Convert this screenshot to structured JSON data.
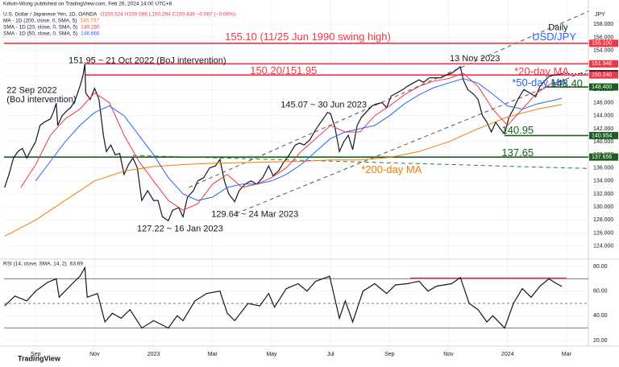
{
  "chart_data": [
    {
      "type": "line",
      "source": "Kelvin-Wong published on TradingView.com, Feb 26, 2024 14:00 UTC+8",
      "quote": "O150.524 H150.566 L150.294 C150.438 −0.087 (−0.06%)",
      "axis_unit": "JPY",
      "xlim": [
        6.93,
        26.74
      ],
      "ylim": [
        122,
        161
      ],
      "yticks": [
        {
          "value": 124,
          "label": "124.000"
        },
        {
          "value": 126,
          "label": "126.000"
        },
        {
          "value": 128,
          "label": "128.000"
        },
        {
          "value": 130,
          "label": "130.000"
        },
        {
          "value": 132,
          "label": "132.000"
        },
        {
          "value": 134,
          "label": "134.000"
        },
        {
          "value": 136,
          "label": "136.000"
        },
        {
          "value": 138,
          "label": "138.000"
        },
        {
          "value": 140,
          "label": "140.000"
        },
        {
          "value": 142,
          "label": "142.000"
        },
        {
          "value": 144,
          "label": "144.000"
        },
        {
          "value": 146,
          "label": "146.000"
        },
        {
          "value": 148,
          "label": "148.000"
        },
        {
          "value": 150,
          "label": "150.000"
        },
        {
          "value": 152,
          "label": "152.000"
        },
        {
          "value": 154,
          "label": "154.000"
        },
        {
          "value": 156,
          "label": "156.000"
        },
        {
          "value": 158,
          "label": "158.000"
        }
      ],
      "grid": true,
      "series": [
        {
          "name": "U.S. Dollar / Japanese Yen, 1D, OANDA",
          "color": "#131722",
          "x": [
            6.95,
            7.1,
            7.25,
            7.4,
            7.55,
            7.7,
            7.85,
            8.0,
            8.15,
            8.3,
            8.5,
            8.6,
            8.7,
            8.75,
            8.9,
            9.05,
            9.2,
            9.35,
            9.5,
            9.6,
            9.67,
            9.7,
            9.85,
            10.0,
            10.15,
            10.3,
            10.4,
            10.55,
            10.7,
            10.85,
            11.0,
            11.15,
            11.3,
            11.45,
            11.6,
            11.8,
            12.0,
            12.15,
            12.3,
            12.5,
            12.65,
            12.85,
            13.0,
            13.15,
            13.35,
            13.5,
            13.7,
            13.9,
            14.1,
            14.25,
            14.4,
            14.55,
            14.75,
            14.9,
            15.1,
            15.3,
            15.5,
            15.7,
            15.9,
            16.05,
            16.25,
            16.4,
            16.6,
            16.8,
            16.95,
            17.1,
            17.3,
            17.5,
            17.7,
            17.9,
            18.0,
            18.15,
            18.3,
            18.45,
            18.6,
            18.75,
            18.9,
            19.05,
            19.2,
            19.4,
            19.55,
            19.75,
            19.9,
            20.05,
            20.25,
            20.45,
            20.6,
            20.8,
            21.0,
            21.15,
            21.35,
            21.55,
            21.75,
            21.95,
            22.1,
            22.25,
            22.4,
            22.5,
            22.65,
            22.85,
            23.0,
            23.15,
            23.3,
            23.45,
            23.6,
            23.75,
            23.9,
            24.05,
            24.2,
            24.35,
            24.55,
            24.75,
            24.95,
            25.1,
            25.25,
            25.4,
            25.55,
            25.7,
            25.84
          ],
          "values": [
            133.0,
            135.0,
            137.5,
            138.5,
            139.0,
            137.5,
            138.8,
            140.0,
            142.5,
            143.0,
            143.5,
            144.5,
            145.9,
            142.5,
            144.0,
            144.7,
            145.3,
            146.5,
            148.5,
            150.0,
            151.9,
            147.5,
            146.5,
            148.2,
            146.5,
            141.0,
            138.5,
            139.5,
            138.0,
            138.2,
            135.0,
            136.5,
            137.5,
            136.0,
            131.0,
            132.5,
            131.0,
            131.0,
            128.5,
            127.9,
            129.5,
            129.9,
            128.5,
            131.5,
            132.5,
            134.0,
            134.5,
            136.0,
            136.3,
            137.3,
            134.0,
            132.0,
            130.8,
            132.5,
            133.5,
            134.0,
            133.5,
            134.5,
            136.3,
            134.8,
            135.6,
            136.8,
            138.0,
            139.5,
            139.8,
            139.5,
            140.3,
            141.9,
            143.2,
            144.5,
            144.3,
            142.2,
            138.5,
            140.0,
            141.0,
            138.8,
            142.5,
            143.8,
            144.5,
            145.5,
            145.8,
            146.0,
            145.2,
            147.0,
            147.5,
            148.0,
            148.5,
            149.0,
            149.5,
            149.1,
            149.8,
            149.8,
            149.8,
            150.3,
            150.5,
            151.0,
            151.5,
            149.5,
            148.0,
            147.3,
            146.5,
            144.0,
            143.0,
            141.5,
            143.0,
            142.0,
            141.2,
            143.8,
            145.0,
            146.5,
            148.0,
            147.5,
            146.9,
            148.5,
            149.3,
            150.0,
            150.2,
            150.3,
            150.44
          ]
        },
        {
          "name": "MA - 1D (200, close, 0, SMA, 5)",
          "legend_value": "145.707",
          "color": "#f57c00",
          "x": [
            6.95,
            8,
            9,
            10,
            11,
            12,
            13,
            14,
            15,
            16,
            17,
            18,
            19,
            20,
            21,
            22,
            23,
            24,
            25,
            25.84
          ],
          "values": [
            125.5,
            128,
            131,
            134,
            135.5,
            136.2,
            136.5,
            136.7,
            136.8,
            136.9,
            137,
            137.2,
            137.2,
            137.6,
            138.5,
            140,
            142,
            143.8,
            145,
            145.707
          ]
        },
        {
          "name": "SMA - 1D (20, close, 0, SMA, 5)",
          "legend_value": "149.280",
          "color": "#f23645",
          "x": [
            7.5,
            8,
            8.5,
            9,
            9.5,
            10,
            10.5,
            11,
            11.5,
            12,
            12.5,
            13,
            13.5,
            14,
            14.5,
            15,
            15.5,
            16,
            16.5,
            17,
            17.5,
            18,
            18.5,
            19,
            19.5,
            20,
            20.5,
            21,
            21.5,
            22,
            22.5,
            23,
            23.5,
            24,
            24.5,
            25,
            25.5,
            25.84
          ],
          "values": [
            133,
            136.5,
            141,
            143.5,
            145,
            147.5,
            146,
            141,
            137,
            134,
            131,
            129.5,
            130.5,
            133.5,
            135,
            133,
            133.5,
            134.5,
            136,
            138.5,
            140.5,
            142.5,
            141.5,
            141.5,
            144,
            145.5,
            147.2,
            148.5,
            149.3,
            149.7,
            150.5,
            148.5,
            145,
            142.5,
            145,
            147.5,
            149,
            149.28
          ]
        },
        {
          "name": "SMA - 1D (50, close, 0, SMA, 5)",
          "legend_value": "146.666",
          "color": "#2962ff",
          "x": [
            8,
            8.5,
            9,
            9.5,
            10,
            10.5,
            11,
            11.5,
            12,
            12.5,
            13,
            13.5,
            14,
            14.5,
            15,
            15.5,
            16,
            16.5,
            17,
            17.5,
            18,
            18.5,
            19,
            19.5,
            20,
            20.5,
            21,
            21.5,
            22,
            22.5,
            23,
            23.5,
            24,
            24.5,
            25,
            25.5,
            25.84
          ],
          "values": [
            134,
            137,
            140,
            142.5,
            144.5,
            145.5,
            144,
            141,
            138,
            134.5,
            132,
            131,
            131.5,
            133,
            133.5,
            133.5,
            134,
            135,
            136.5,
            138.5,
            140.5,
            141.5,
            142,
            142.5,
            144,
            145.8,
            147.2,
            148.3,
            149,
            149.7,
            149,
            147.3,
            145.5,
            145,
            145.8,
            146.3,
            146.666
          ]
        }
      ],
      "levels": [
        {
          "value": 155.1,
          "label": "155.100",
          "color": "#f23645",
          "from": 6.93
        },
        {
          "value": 151.946,
          "label": "151.946",
          "color": "#f23645",
          "from": 9.67
        },
        {
          "value": 150.438,
          "label": "150.438",
          "color": "#131722",
          "from": 25.84
        },
        {
          "value": 150.24,
          "label": "150.240",
          "color": "#f23645",
          "from": 9.67
        },
        {
          "value": 148.4,
          "label": "148.400",
          "color": "#1b5e20",
          "from": 25.3
        },
        {
          "value": 140.954,
          "label": "140.954",
          "color": "#1b5e20",
          "from": 23.9
        },
        {
          "value": 137.656,
          "label": "137.656",
          "color": "#1b5e20",
          "from": 6.93
        }
      ],
      "trendlines": [
        {
          "x": [
            13.2,
            26.74
          ],
          "y": [
            133.0,
            160.0
          ]
        },
        {
          "x": [
            14.8,
            26.74
          ],
          "y": [
            129.0,
            151.0
          ]
        },
        {
          "x": [
            11.3,
            26.74
          ],
          "y": [
            137.9,
            135.9
          ]
        }
      ],
      "annotations": [
        {
          "text": "155.10 (11/25 Jun 1990 swing high)",
          "x": 14.42,
          "y": 156.0,
          "color": "#f23645"
        },
        {
          "text": "151.95 ~ 21 Oct 2022 (BoJ intervention)",
          "x": 9.12,
          "y": 152.4,
          "color": "#131722"
        },
        {
          "text": "22 Sep 2022",
          "x": 7.02,
          "y": 147.87,
          "color": "#131722"
        },
        {
          "text": "(BoJ intervention)",
          "x": 7.02,
          "y": 146.4,
          "color": "#131722"
        },
        {
          "text": "150.20/151.95",
          "x": 15.27,
          "y": 150.8,
          "color": "#f23645"
        },
        {
          "text": "13 Nov 2023",
          "x": 22.04,
          "y": 152.7,
          "color": "#131722"
        },
        {
          "text": "*20-day MA",
          "x": 24.23,
          "y": 150.71,
          "color": "#f23645"
        },
        {
          "text": "*50-day MA",
          "x": 24.15,
          "y": 148.98,
          "color": "#2962ff"
        },
        {
          "text": "148.40",
          "x": 25.46,
          "y": 148.86,
          "color": "#1b5e20"
        },
        {
          "text": "145.07 ~ 30 Jun 2023",
          "x": 16.31,
          "y": 145.65,
          "color": "#131722"
        },
        {
          "text": "140.95",
          "x": 23.8,
          "y": 141.7,
          "color": "#1b5e20"
        },
        {
          "text": "137.65",
          "x": 23.8,
          "y": 138.24,
          "color": "#1b5e20"
        },
        {
          "text": "*200-day MA",
          "x": 19.04,
          "y": 135.65,
          "color": "#f57c00"
        },
        {
          "text": "129.64 ~ 24 Mar 2023",
          "x": 13.96,
          "y": 128.86,
          "color": "#131722"
        },
        {
          "text": "127.22 ~ 16 Jan 2023",
          "x": 11.44,
          "y": 126.6,
          "color": "#131722"
        },
        {
          "text": "Daily",
          "x": 25.38,
          "y": 157.5,
          "color": "#131722"
        },
        {
          "text": "USD/JPY",
          "x": 24.83,
          "y": 156.0,
          "color": "#2962ff"
        }
      ]
    },
    {
      "type": "line",
      "xlim": [
        6.93,
        26.74
      ],
      "ylim": [
        15.4,
        85.9
      ],
      "yticks": [
        {
          "value": 20,
          "label": "20.00"
        },
        {
          "value": 40,
          "label": "40.00"
        },
        {
          "value": 60,
          "label": "60.00"
        },
        {
          "value": 80,
          "label": "80.00"
        }
      ],
      "xticks": [
        {
          "value": 8,
          "label": "Sep"
        },
        {
          "value": 10,
          "label": "Nov"
        },
        {
          "value": 12,
          "label": "2023"
        },
        {
          "value": 14,
          "label": "Mar"
        },
        {
          "value": 16,
          "label": "May"
        },
        {
          "value": 18,
          "label": "Jul"
        },
        {
          "value": 20,
          "label": "Sep"
        },
        {
          "value": 22,
          "label": "Nov"
        },
        {
          "value": 24,
          "label": "2024"
        },
        {
          "value": 26,
          "label": "Mar"
        }
      ],
      "series": [
        {
          "name": "RSI (14, close, SMA, 14, 2)",
          "legend_value": "63.69",
          "color": "#131722",
          "x": [
            6.95,
            7.3,
            7.7,
            8.0,
            8.4,
            8.7,
            8.8,
            9.2,
            9.5,
            9.67,
            9.75,
            10.1,
            10.35,
            10.6,
            10.9,
            11.2,
            11.6,
            12.0,
            12.5,
            12.8,
            13.0,
            13.4,
            13.8,
            14.25,
            14.5,
            14.75,
            15.2,
            15.6,
            15.9,
            16.1,
            16.5,
            16.9,
            17.2,
            17.5,
            17.97,
            18.3,
            18.5,
            18.75,
            19.1,
            19.5,
            19.9,
            20.2,
            20.6,
            21.0,
            21.3,
            21.6,
            22.1,
            22.4,
            22.7,
            23.0,
            23.3,
            23.5,
            23.9,
            24.2,
            24.5,
            24.8,
            25.1,
            25.4,
            25.6,
            25.84
          ],
          "values": [
            48,
            56,
            52,
            60,
            67,
            70,
            55,
            65,
            72,
            79,
            55,
            58,
            35,
            42,
            38,
            45,
            30,
            36,
            30,
            40,
            36,
            52,
            58,
            60,
            42,
            36,
            50,
            48,
            58,
            47,
            62,
            66,
            60,
            68,
            72,
            38,
            52,
            35,
            60,
            66,
            58,
            65,
            66,
            68,
            60,
            64,
            66,
            71,
            50,
            45,
            35,
            40,
            30,
            50,
            62,
            55,
            64,
            70,
            67,
            63.69
          ]
        }
      ],
      "levels": [
        70,
        50,
        30
      ],
      "resistance": {
        "x": [
          20.7,
          26.0
        ],
        "y": [
          70.6,
          70.6
        ],
        "color": "#f23645"
      },
      "footer": "TradingView"
    }
  ]
}
